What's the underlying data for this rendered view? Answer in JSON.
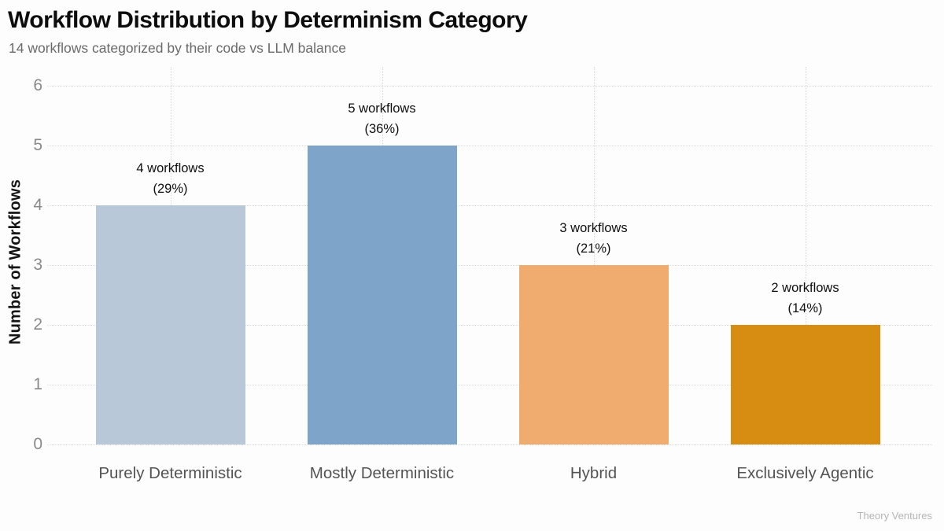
{
  "header": {
    "title": "Workflow Distribution by Determinism Category",
    "subtitle": "14 workflows categorized by their code vs LLM balance"
  },
  "footer": {
    "brand": "Theory Ventures"
  },
  "chart_data": {
    "type": "bar",
    "title": "Workflow Distribution by Determinism Category",
    "subtitle": "14 workflows categorized by their code vs LLM balance",
    "categories": [
      "Purely Deterministic",
      "Mostly Deterministic",
      "Hybrid",
      "Exclusively Agentic"
    ],
    "values": [
      4,
      5,
      3,
      2
    ],
    "percentages": [
      29,
      36,
      21,
      14
    ],
    "bar_labels": [
      [
        "4 workflows",
        "(29%)"
      ],
      [
        "5 workflows",
        "(36%)"
      ],
      [
        "3 workflows",
        "(21%)"
      ],
      [
        "2 workflows",
        "(14%)"
      ]
    ],
    "bar_colors": [
      "#b8c8d9",
      "#7ea5c9",
      "#f0ab6e",
      "#d78c12"
    ],
    "xlabel": "",
    "ylabel": "Number of Workflows",
    "ylim": [
      0,
      6
    ],
    "yticks": [
      0,
      1,
      2,
      3,
      4,
      5,
      6
    ],
    "grid": "dotted horizontal at integers, dotted vertical at category centers",
    "legend_position": "none",
    "total_workflows": "14"
  }
}
